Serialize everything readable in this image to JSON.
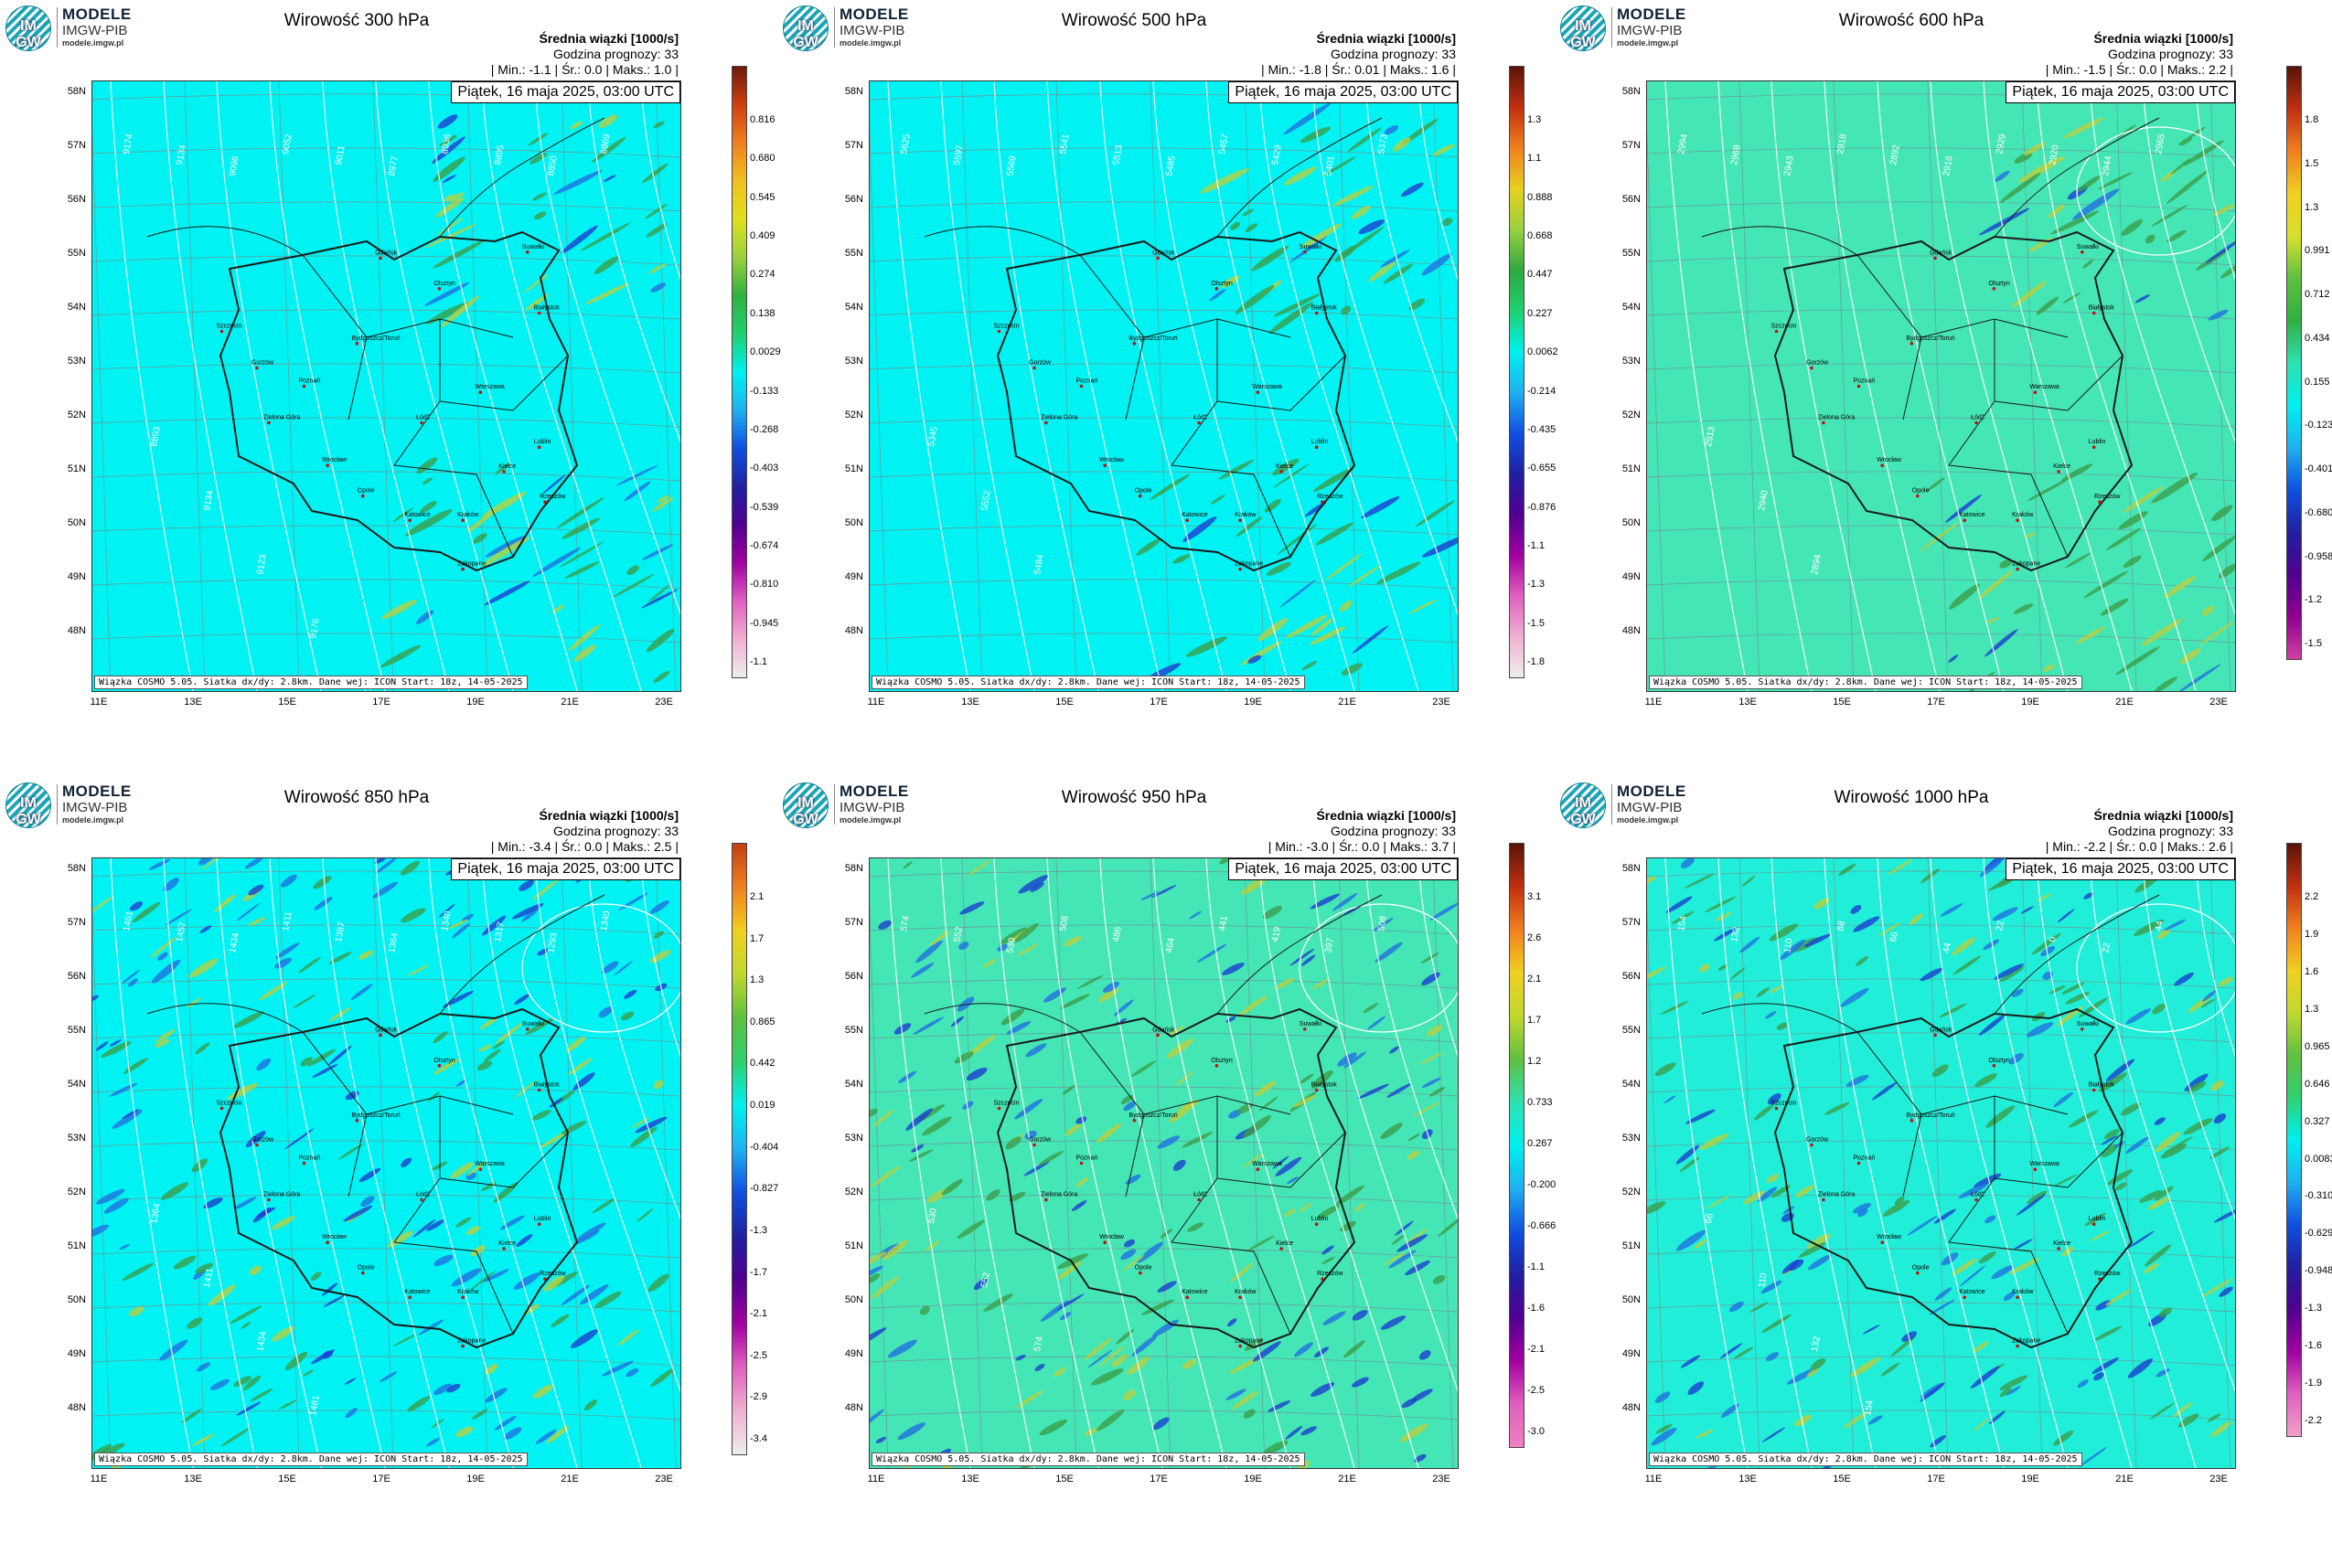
{
  "logo": {
    "line1": "MODELE",
    "line2": "IMGW-PIB",
    "url": "modele.imgw.pl",
    "mark": "IM GW"
  },
  "stat_labels": {
    "min": "| Min.:",
    "avg": "| Śr.:",
    "max": "| Maks.:"
  },
  "subtitle": "Średnia wiązki [1000/s]",
  "forecast_label": "Godzina prognozy:",
  "forecast_hour": "33",
  "valid_time": "Piątek, 16 maja 2025, 03:00 UTC",
  "footer": "Wiązka COSMO 5.05. Siatka dx/dy: 2.8km. Dane wej: ICON Start: 18z, 14-05-2025",
  "lat_labels": [
    "58N",
    "57N",
    "56N",
    "55N",
    "54N",
    "53N",
    "52N",
    "51N",
    "50N",
    "49N",
    "48N"
  ],
  "lon_labels": [
    "11E",
    "13E",
    "15E",
    "17E",
    "19E",
    "21E",
    "23E"
  ],
  "colors": {
    "background_cyan": "#00f5f5",
    "background_mint": "#40e8b8",
    "positive_green": "#2e9e3e",
    "negative_blue": "#1a3fd0",
    "contour": "#ffffff",
    "border": "#1a1a1a"
  },
  "panels": [
    {
      "title": "Wirowość 300 hPa",
      "min": "-1.1",
      "avg": "0.0",
      "max": "1.0",
      "background": "#00f2f2",
      "colorbar_labels": [
        "0.816",
        "0.680",
        "0.545",
        "0.409",
        "0.274",
        "0.138",
        "0.0029",
        "-0.133",
        "-0.268",
        "-0.403",
        "-0.539",
        "-0.674",
        "-0.810",
        "-0.945",
        "-1.1"
      ],
      "contour_labels": [
        "9174",
        "9134",
        "9096",
        "9052",
        "9011",
        "8977",
        "8936",
        "8895",
        "8850",
        "8869",
        "8893",
        "9134",
        "9123",
        "9176",
        "9101",
        "9107",
        "9016",
        "9056"
      ]
    },
    {
      "title": "Wirowość 500 hPa",
      "min": "-1.8",
      "avg": "0.01",
      "max": "1.6",
      "background": "#00f2f2",
      "colorbar_labels": [
        "1.3",
        "1.1",
        "0.888",
        "0.668",
        "0.447",
        "0.227",
        "0.0062",
        "-0.214",
        "-0.435",
        "-0.655",
        "-0.876",
        "-1.1",
        "-1.3",
        "-1.5",
        "-1.8"
      ],
      "contour_labels": [
        "5625",
        "5597",
        "5569",
        "5541",
        "5513",
        "5485",
        "5457",
        "5429",
        "5401",
        "5373",
        "5345",
        "5552",
        "5484"
      ]
    },
    {
      "title": "Wirowość 600 hPa",
      "min": "-1.5",
      "avg": "0.0",
      "max": "2.2",
      "background": "#45e6b5",
      "colorbar_labels": [
        "1.8",
        "1.5",
        "1.3",
        "0.991",
        "0.712",
        "0.434",
        "0.155",
        "-0.123",
        "-0.401",
        "-0.680",
        "-0.958",
        "-1.2",
        "-1.5"
      ],
      "contour_labels": [
        "2994",
        "2969",
        "2943",
        "2918",
        "2892",
        "2916",
        "2929",
        "2920",
        "2944",
        "2965",
        "2913",
        "2940",
        "2894"
      ]
    },
    {
      "title": "Wirowość 850 hPa",
      "min": "-3.4",
      "avg": "0.0",
      "max": "2.5",
      "background": "#00f2f2",
      "colorbar_labels": [
        "2.1",
        "1.7",
        "1.3",
        "0.865",
        "0.442",
        "0.019",
        "-0.404",
        "-0.827",
        "-1.3",
        "-1.7",
        "-2.1",
        "-2.5",
        "-2.9",
        "-3.4"
      ],
      "contour_labels": [
        "1461",
        "1457",
        "1434",
        "1411",
        "1387",
        "1364",
        "1340",
        "1317",
        "1293",
        "1340",
        "1364",
        "1411",
        "1434",
        "1481"
      ]
    },
    {
      "title": "Wirowość 950 hPa",
      "min": "-3.0",
      "avg": "0.0",
      "max": "3.7",
      "background": "#45e6b5",
      "colorbar_labels": [
        "3.1",
        "2.6",
        "2.1",
        "1.7",
        "1.2",
        "0.733",
        "0.267",
        "-0.200",
        "-0.666",
        "-1.1",
        "-1.6",
        "-2.1",
        "-2.5",
        "-3.0"
      ],
      "contour_labels": [
        "574",
        "552",
        "530",
        "508",
        "486",
        "464",
        "441",
        "419",
        "397",
        "508",
        "530",
        "552",
        "574"
      ]
    },
    {
      "title": "Wirowość 1000 hPa",
      "min": "-2.2",
      "avg": "0.0",
      "max": "2.6",
      "background": "#20eed8",
      "colorbar_labels": [
        "2.2",
        "1.9",
        "1.6",
        "1.3",
        "0.965",
        "0.646",
        "0.327",
        "0.0083",
        "-0.310",
        "-0.629",
        "-0.948",
        "-1.3",
        "-1.6",
        "-1.9",
        "-2.2"
      ],
      "contour_labels": [
        "154",
        "132",
        "110",
        "88",
        "66",
        "44",
        "22",
        "0",
        "22",
        "44",
        "66",
        "110",
        "132",
        "154"
      ]
    }
  ],
  "cities": [
    "Gdańsk",
    "Suwałki",
    "Olsztyn",
    "Białystok",
    "Szczecin",
    "Bydgoszcz/Toruń",
    "Gorzów",
    "Poznań",
    "Warszawa",
    "Zielona Góra",
    "Łódź",
    "Lublin",
    "Wrocław",
    "Kielce",
    "Opole",
    "Rzeszów",
    "Katowice",
    "Kraków",
    "Zakopane"
  ]
}
